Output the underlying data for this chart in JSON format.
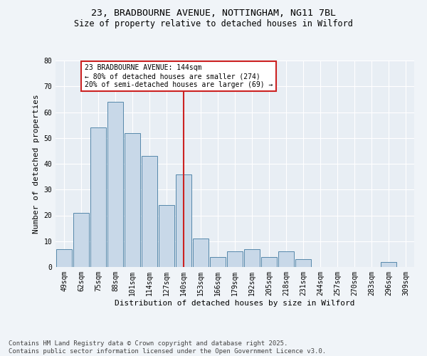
{
  "title1": "23, BRADBOURNE AVENUE, NOTTINGHAM, NG11 7BL",
  "title2": "Size of property relative to detached houses in Wilford",
  "xlabel": "Distribution of detached houses by size in Wilford",
  "ylabel": "Number of detached properties",
  "categories": [
    "49sqm",
    "62sqm",
    "75sqm",
    "88sqm",
    "101sqm",
    "114sqm",
    "127sqm",
    "140sqm",
    "153sqm",
    "166sqm",
    "179sqm",
    "192sqm",
    "205sqm",
    "218sqm",
    "231sqm",
    "244sqm",
    "257sqm",
    "270sqm",
    "283sqm",
    "296sqm",
    "309sqm"
  ],
  "values": [
    7,
    21,
    54,
    64,
    52,
    43,
    24,
    36,
    11,
    4,
    6,
    7,
    4,
    6,
    3,
    0,
    0,
    0,
    0,
    2,
    0
  ],
  "bar_color": "#c8d8e8",
  "bar_edge_color": "#5588aa",
  "vline_x": 7,
  "vline_color": "#cc2222",
  "ylim": [
    0,
    80
  ],
  "yticks": [
    0,
    10,
    20,
    30,
    40,
    50,
    60,
    70,
    80
  ],
  "background_color": "#e8eef4",
  "grid_color": "#ffffff",
  "annotation_title": "23 BRADBOURNE AVENUE: 144sqm",
  "annotation_line1": "← 80% of detached houses are smaller (274)",
  "annotation_line2": "20% of semi-detached houses are larger (69) →",
  "annotation_box_color": "#cc2222",
  "footer": "Contains HM Land Registry data © Crown copyright and database right 2025.\nContains public sector information licensed under the Open Government Licence v3.0.",
  "title_fontsize": 9.5,
  "subtitle_fontsize": 8.5,
  "axis_label_fontsize": 8,
  "tick_fontsize": 7,
  "annotation_fontsize": 7,
  "footer_fontsize": 6.5
}
